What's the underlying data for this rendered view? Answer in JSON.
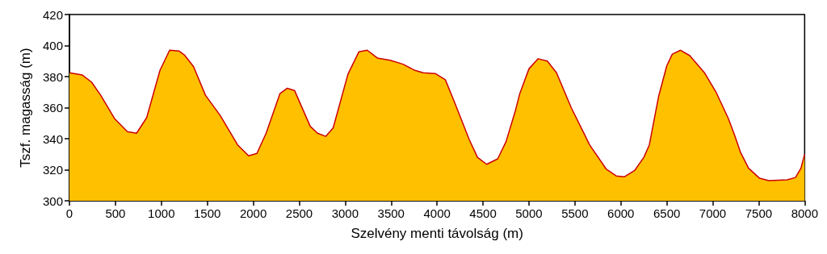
{
  "chart_data": {
    "type": "area",
    "xlabel": "Szelvény menti távolság (m)",
    "ylabel": "Tszf. magasság (m)",
    "x": [
      0,
      140,
      240,
      340,
      490,
      630,
      730,
      840,
      985,
      1090,
      1190,
      1250,
      1350,
      1480,
      1640,
      1830,
      1950,
      2040,
      2140,
      2290,
      2370,
      2450,
      2620,
      2700,
      2790,
      2870,
      3030,
      3150,
      3240,
      3350,
      3490,
      3630,
      3760,
      3850,
      3980,
      4090,
      4190,
      4350,
      4440,
      4540,
      4660,
      4750,
      4850,
      4900,
      5000,
      5100,
      5200,
      5300,
      5460,
      5590,
      5660,
      5840,
      5950,
      6040,
      6150,
      6250,
      6310,
      6410,
      6500,
      6560,
      6650,
      6750,
      6910,
      7040,
      7170,
      7240,
      7300,
      7390,
      7510,
      7610,
      7810,
      7900,
      7960,
      8000
    ],
    "series": [
      {
        "color": "#ffc000",
        "values": [
          382.5,
          381,
          376.5,
          368,
          353,
          344.5,
          343.5,
          353.5,
          384,
          397,
          396.5,
          394,
          386.5,
          368,
          355,
          336,
          329,
          330.5,
          343.5,
          369,
          372.5,
          371,
          348,
          343.5,
          341.5,
          347,
          381.5,
          396,
          397,
          392,
          390.5,
          388,
          384,
          382.5,
          382,
          378,
          363.5,
          339.5,
          328,
          323.5,
          327,
          338,
          357.5,
          369,
          385,
          391.5,
          390,
          382.5,
          360,
          344.5,
          336,
          320.5,
          316,
          315.5,
          319.5,
          328,
          336,
          367,
          387,
          394.5,
          397,
          393.5,
          382.5,
          369.5,
          353,
          342,
          331.5,
          321,
          314.5,
          313,
          313.5,
          315,
          321,
          330
        ]
      }
    ],
    "xlim": [
      0,
      8000
    ],
    "xticks": [
      0,
      500,
      1000,
      1500,
      2000,
      2500,
      3000,
      3500,
      4000,
      4500,
      5000,
      5500,
      6000,
      6500,
      7000,
      7500,
      8000
    ],
    "ylim": [
      300,
      420
    ],
    "yticks": [
      300,
      320,
      340,
      360,
      380,
      400,
      420
    ],
    "grid": false,
    "marker": "none",
    "line_style": "solid"
  }
}
